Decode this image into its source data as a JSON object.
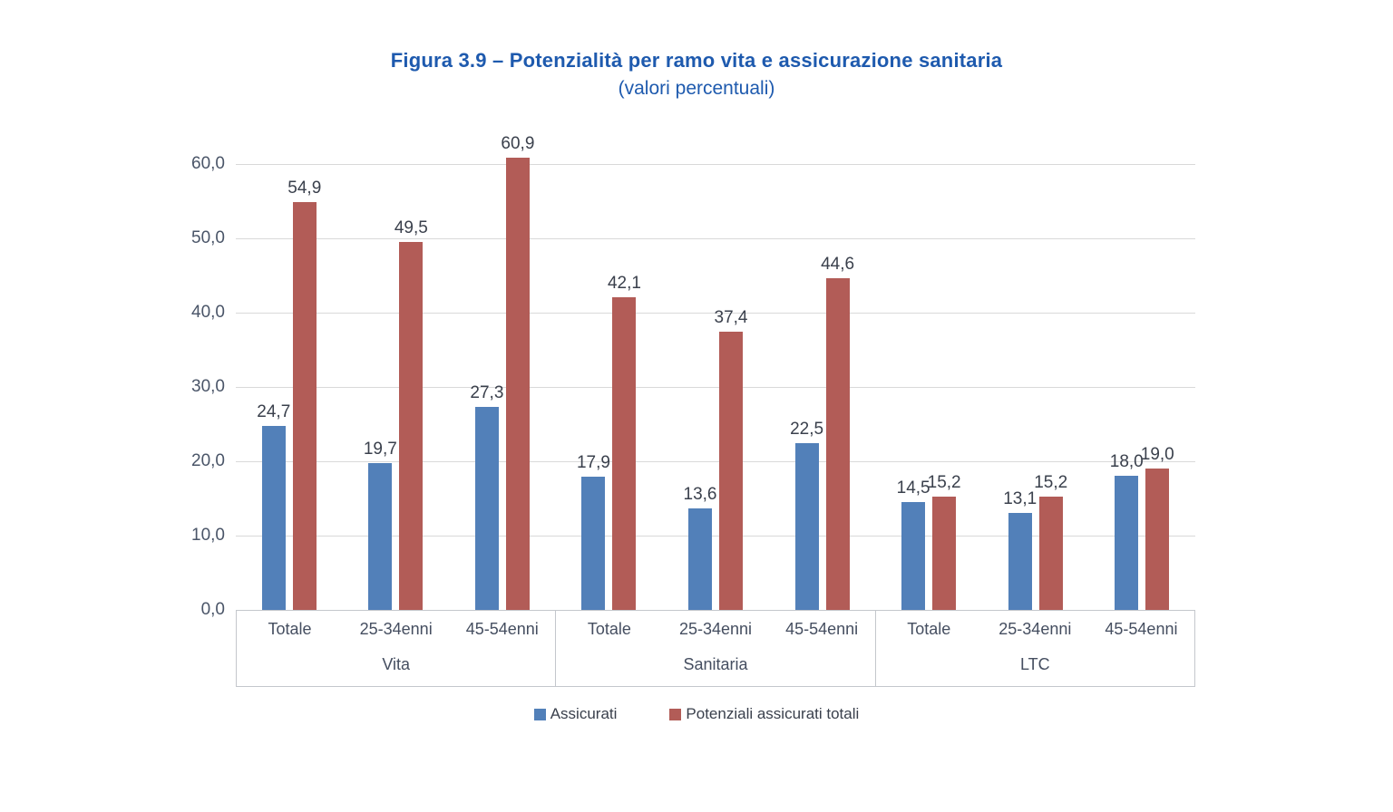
{
  "figure": {
    "title": "Figura 3.9 – Potenzialità per ramo vita e assicurazione sanitaria",
    "subtitle": "(valori percentuali)"
  },
  "colors": {
    "title_blue": "#1e5aae",
    "assicurati_blue": "#5280b9",
    "potenziali_red": "#b25c57",
    "gridline_gray": "#d9d9d9",
    "axis_text": "#4a5568"
  },
  "chart_data": {
    "type": "bar",
    "title": "Figura 3.9 – Potenzialità per ramo vita e assicurazione sanitaria",
    "subtitle": "(valori percentuali)",
    "ylim": [
      0,
      60
    ],
    "grid": true,
    "legend_position": "bottom",
    "y_ticks": [
      {
        "value": 60,
        "label": "60,0"
      },
      {
        "value": 50,
        "label": "50,0"
      },
      {
        "value": 40,
        "label": "40,0"
      },
      {
        "value": 30,
        "label": "30,0"
      },
      {
        "value": 20,
        "label": "20,0"
      },
      {
        "value": 10,
        "label": "10,0"
      },
      {
        "value": 0,
        "label": "0,0"
      }
    ],
    "groups": [
      {
        "label": "Vita",
        "categories": [
          "Totale",
          "25-34enni",
          "45-54enni"
        ]
      },
      {
        "label": "Sanitaria",
        "categories": [
          "Totale",
          "25-34enni",
          "45-54enni"
        ]
      },
      {
        "label": "LTC",
        "categories": [
          "Totale",
          "25-34enni",
          "45-54enni"
        ]
      }
    ],
    "series": [
      {
        "name": "Assicurati",
        "color": "#5280b9",
        "values": [
          24.7,
          19.7,
          27.3,
          17.9,
          13.6,
          22.5,
          14.5,
          13.1,
          18.0
        ],
        "labels": [
          "24,7",
          "19,7",
          "27,3",
          "17,9",
          "13,6",
          "22,5",
          "14,5",
          "13,1",
          "18,0"
        ]
      },
      {
        "name": "Potenziali assicurati totali",
        "color": "#b25c57",
        "values": [
          54.9,
          49.5,
          60.9,
          42.1,
          37.4,
          44.6,
          15.2,
          15.2,
          19.0
        ],
        "labels": [
          "54,9",
          "49,5",
          "60,9",
          "42,1",
          "37,4",
          "44,6",
          "15,2",
          "15,2",
          "19,0"
        ]
      }
    ]
  }
}
